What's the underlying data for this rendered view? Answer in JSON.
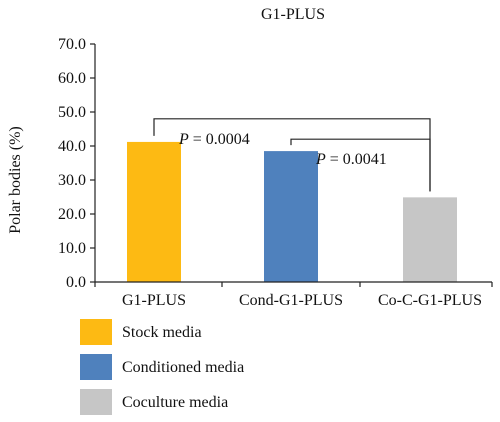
{
  "chart_data": {
    "type": "bar",
    "title": "G1-PLUS",
    "ylabel": "Polar bodies (%)",
    "xlabel": "",
    "categories": [
      "G1-PLUS",
      "Cond-G1-PLUS",
      "Co-C-G1-PLUS"
    ],
    "values": [
      41.2,
      38.5,
      24.9
    ],
    "ylim": [
      0,
      70
    ],
    "yticks": [
      "0.0",
      "10.0",
      "20.0",
      "30.0",
      "40.0",
      "50.0",
      "60.0",
      "70.0"
    ],
    "colors": [
      "#FDBA13",
      "#4F81BD",
      "#C6C6C6"
    ],
    "grid": false,
    "comparisons": [
      {
        "from": 0,
        "to": 2,
        "label_p": "P",
        "label_rest": " = 0.0004",
        "level": 48.0
      },
      {
        "from": 1,
        "to": 2,
        "label_p": "P",
        "label_rest": " = 0.0041",
        "level": 42.0
      }
    ],
    "legend": {
      "placement": "bottom-left",
      "entries": [
        {
          "label": "Stock media",
          "color": "#FDBA13"
        },
        {
          "label": "Conditioned media",
          "color": "#4F81BD"
        },
        {
          "label": "Coculture media",
          "color": "#C6C6C6"
        }
      ]
    }
  }
}
